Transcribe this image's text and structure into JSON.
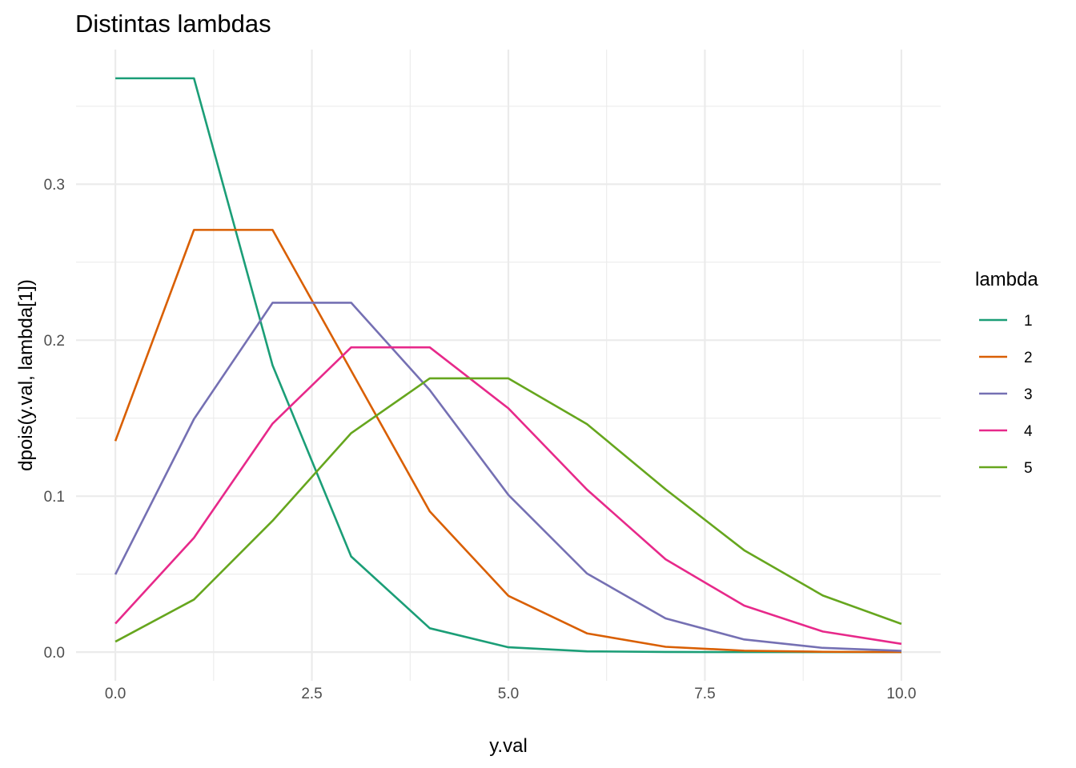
{
  "chart_data": {
    "type": "line",
    "title": "Distintas lambdas",
    "xlabel": "y.val",
    "ylabel": "dpois(y.val, lambda[1])",
    "xlim": [
      0,
      10
    ],
    "ylim": [
      0,
      0.368
    ],
    "x_ticks": [
      "0.0",
      "2.5",
      "5.0",
      "7.5",
      "10.0"
    ],
    "y_ticks": [
      "0.0",
      "0.1",
      "0.2",
      "0.3"
    ],
    "grid": true,
    "legend": {
      "title": "lambda",
      "position": "right"
    },
    "x": [
      0,
      1,
      2,
      3,
      4,
      5,
      6,
      7,
      8,
      9,
      10
    ],
    "series": [
      {
        "name": "1",
        "color": "#1b9e77",
        "values": [
          0.3679,
          0.3679,
          0.1839,
          0.0613,
          0.0153,
          0.0031,
          0.0005,
          0.0001,
          0.0,
          0.0,
          0.0
        ]
      },
      {
        "name": "2",
        "color": "#d95f02",
        "values": [
          0.1353,
          0.2707,
          0.2707,
          0.1804,
          0.0902,
          0.0361,
          0.012,
          0.0034,
          0.0009,
          0.0002,
          0.0
        ]
      },
      {
        "name": "3",
        "color": "#7570b3",
        "values": [
          0.0498,
          0.1494,
          0.224,
          0.224,
          0.168,
          0.1008,
          0.0504,
          0.0216,
          0.0081,
          0.0027,
          0.0008
        ]
      },
      {
        "name": "4",
        "color": "#e7298a",
        "values": [
          0.0183,
          0.0733,
          0.1465,
          0.1954,
          0.1954,
          0.1563,
          0.1042,
          0.0595,
          0.0298,
          0.0132,
          0.0053
        ]
      },
      {
        "name": "5",
        "color": "#66a61e",
        "values": [
          0.0067,
          0.0337,
          0.0842,
          0.1404,
          0.1755,
          0.1755,
          0.1462,
          0.1044,
          0.0653,
          0.0363,
          0.0181
        ]
      }
    ]
  }
}
